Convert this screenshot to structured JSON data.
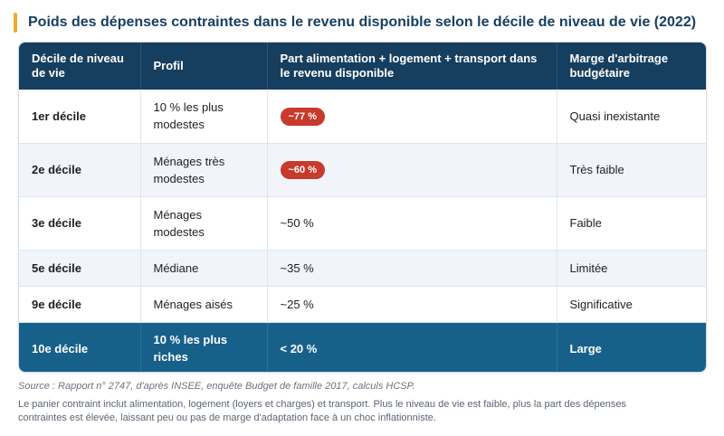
{
  "title": "Poids des dépenses contraintes dans le revenu disponible selon le décile de niveau de vie (2022)",
  "colors": {
    "accent_bar": "#f0a830",
    "header_bg": "#163e5e",
    "highlight_row_bg": "#17608a",
    "pill_bg": "#c73a2c",
    "alt_row_bg": "#f1f5f9"
  },
  "table": {
    "headers": {
      "decile": "Décile de niveau de vie",
      "profil": "Profil",
      "part": "Part alimentation + logement + transport dans le revenu disponible",
      "marge": "Marge d'arbitrage budgétaire"
    },
    "rows": [
      {
        "decile": "1er décile",
        "profil": "10 % les plus modestes",
        "part": "~77 %",
        "marge": "Quasi inexistante",
        "part_style": "red-pill"
      },
      {
        "decile": "2e décile",
        "profil": "Ménages très modestes",
        "part": "~60 %",
        "marge": "Très faible",
        "part_style": "red-pill"
      },
      {
        "decile": "3e décile",
        "profil": "Ménages modestes",
        "part": "~50 %",
        "marge": "Faible",
        "part_style": "plain"
      },
      {
        "decile": "5e décile",
        "profil": "Médiane",
        "part": "~35 %",
        "marge": "Limitée",
        "part_style": "plain"
      },
      {
        "decile": "9e décile",
        "profil": "Ménages aisés",
        "part": "~25 %",
        "marge": "Significative",
        "part_style": "plain"
      },
      {
        "decile": "10e décile",
        "profil": "10 % les plus riches",
        "part": "< 20 %",
        "marge": "Large",
        "part_style": "highlight-row"
      }
    ]
  },
  "source": "Source : Rapport n° 2747, d'après INSEE, enquête Budget de famille 2017, calculs HCSP.",
  "note": "Le panier contraint inclut alimentation, logement (loyers et charges) et transport. Plus le niveau de vie est faible, plus la part des dépenses contraintes est élevée, laissant peu ou pas de marge d'adaptation face à un choc inflationniste."
}
